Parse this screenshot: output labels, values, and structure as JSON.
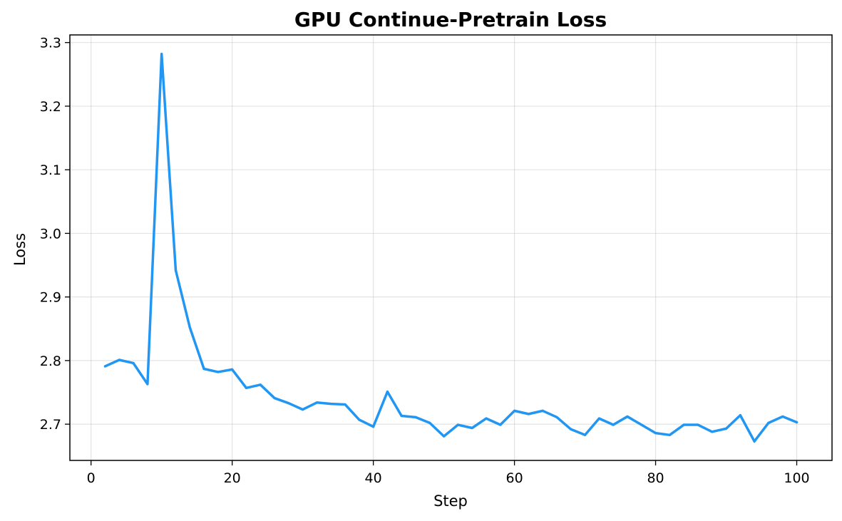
{
  "chart_data": {
    "type": "line",
    "title": "GPU Continue-Pretrain Loss",
    "xlabel": "Step",
    "ylabel": "Loss",
    "xlim": [
      -3,
      105
    ],
    "ylim": [
      2.643,
      3.312
    ],
    "x_ticks": [
      0,
      20,
      40,
      60,
      80,
      100
    ],
    "y_ticks": [
      2.7,
      2.8,
      2.9,
      3.0,
      3.1,
      3.2,
      3.3
    ],
    "x_tick_labels": [
      "0",
      "20",
      "40",
      "60",
      "80",
      "100"
    ],
    "y_tick_labels": [
      "2.7",
      "2.8",
      "2.9",
      "3.0",
      "3.1",
      "3.2",
      "3.3"
    ],
    "grid": true,
    "series": [
      {
        "color": "#2196f3",
        "x": [
          2,
          4,
          6,
          8,
          10,
          12,
          14,
          16,
          18,
          20,
          22,
          24,
          26,
          28,
          30,
          32,
          34,
          36,
          38,
          40,
          42,
          44,
          46,
          48,
          50,
          52,
          54,
          56,
          58,
          60,
          62,
          64,
          66,
          68,
          70,
          72,
          74,
          76,
          78,
          80,
          82,
          84,
          86,
          88,
          90,
          92,
          94,
          96,
          98,
          100
        ],
        "values": [
          2.791,
          2.801,
          2.796,
          2.763,
          3.282,
          2.942,
          2.852,
          2.787,
          2.782,
          2.786,
          2.757,
          2.762,
          2.741,
          2.733,
          2.723,
          2.734,
          2.732,
          2.731,
          2.707,
          2.696,
          2.751,
          2.713,
          2.711,
          2.702,
          2.681,
          2.699,
          2.694,
          2.709,
          2.699,
          2.721,
          2.716,
          2.721,
          2.711,
          2.692,
          2.683,
          2.709,
          2.699,
          2.712,
          2.699,
          2.686,
          2.683,
          2.699,
          2.699,
          2.688,
          2.693,
          2.714,
          2.673,
          2.702,
          2.712,
          2.703
        ]
      }
    ]
  }
}
